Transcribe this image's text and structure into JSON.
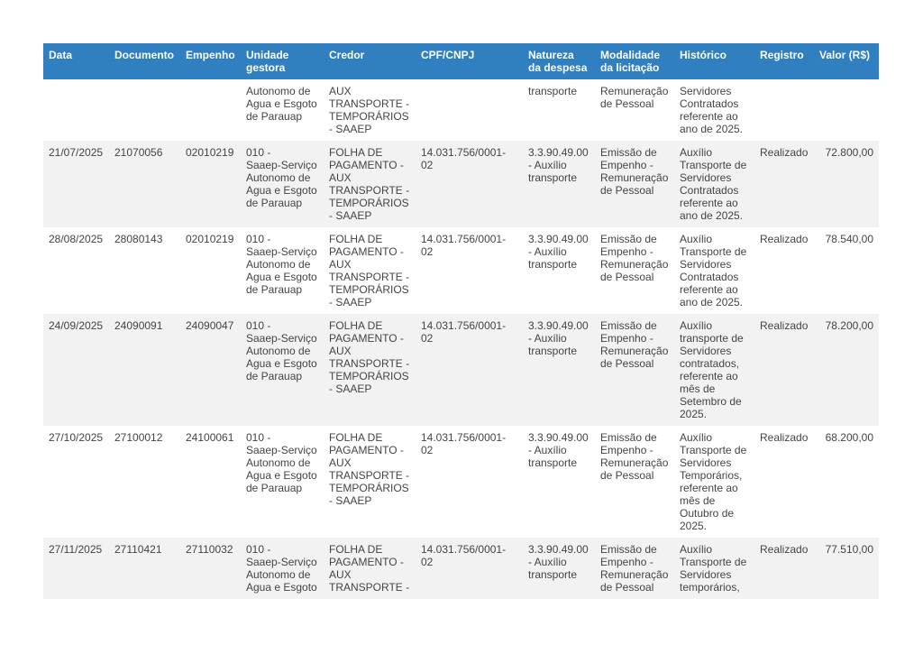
{
  "table": {
    "header": [
      [
        "Data"
      ],
      [
        "Documento"
      ],
      [
        "Empenho"
      ],
      [
        "Unidade",
        "gestora"
      ],
      [
        "Credor"
      ],
      [
        "CPF/CNPJ"
      ],
      [
        "Natureza",
        "da despesa"
      ],
      [
        "Modalidade",
        "da licitação"
      ],
      [
        "Histórico"
      ],
      [
        "Registro"
      ],
      [
        "Valor (R$)"
      ]
    ],
    "rows": [
      [
        [],
        [],
        [],
        [
          "Autonomo de",
          "Agua e Esgoto",
          "de Parauap"
        ],
        [
          "AUX",
          "TRANSPORTE -",
          "TEMPORÁRIOS",
          "- SAAEP"
        ],
        [],
        [
          "transporte"
        ],
        [
          "Remuneração",
          "de Pessoal"
        ],
        [
          "Servidores",
          "Contratados",
          "referente ao",
          "ano de 2025."
        ],
        [],
        []
      ],
      [
        [
          "21/07/2025"
        ],
        [
          "21070056"
        ],
        [
          "02010219"
        ],
        [
          "010 -",
          "Saaep-Serviço",
          "Autonomo de",
          "Agua e Esgoto",
          "de Parauap"
        ],
        [
          "FOLHA DE",
          "PAGAMENTO -",
          "AUX",
          "TRANSPORTE -",
          "TEMPORÁRIOS",
          "- SAAEP"
        ],
        [
          "14.031.756/0001-02"
        ],
        [
          "3.3.90.49.00",
          "- Auxílio",
          "transporte"
        ],
        [
          "Emissão de",
          "Empenho -",
          "Remuneração",
          "de Pessoal"
        ],
        [
          "Auxílio",
          "Transporte de",
          "Servidores",
          "Contratados",
          "referente ao",
          "ano de 2025."
        ],
        [
          "Realizado"
        ],
        [
          "72.800,00"
        ]
      ],
      [
        [
          "28/08/2025"
        ],
        [
          "28080143"
        ],
        [
          "02010219"
        ],
        [
          "010 -",
          "Saaep-Serviço",
          "Autonomo de",
          "Agua e Esgoto",
          "de Parauap"
        ],
        [
          "FOLHA DE",
          "PAGAMENTO -",
          "AUX",
          "TRANSPORTE -",
          "TEMPORÁRIOS",
          "- SAAEP"
        ],
        [
          "14.031.756/0001-02"
        ],
        [
          "3.3.90.49.00",
          "- Auxílio",
          "transporte"
        ],
        [
          "Emissão de",
          "Empenho -",
          "Remuneração",
          "de Pessoal"
        ],
        [
          "Auxílio",
          "Transporte de",
          "Servidores",
          "Contratados",
          "referente ao",
          "ano de 2025."
        ],
        [
          "Realizado"
        ],
        [
          "78.540,00"
        ]
      ],
      [
        [
          "24/09/2025"
        ],
        [
          "24090091"
        ],
        [
          "24090047"
        ],
        [
          "010 -",
          "Saaep-Serviço",
          "Autonomo de",
          "Agua e Esgoto",
          "de Parauap"
        ],
        [
          "FOLHA DE",
          "PAGAMENTO -",
          "AUX",
          "TRANSPORTE -",
          "TEMPORÁRIOS",
          "- SAAEP"
        ],
        [
          "14.031.756/0001-02"
        ],
        [
          "3.3.90.49.00",
          "- Auxílio",
          "transporte"
        ],
        [
          "Emissão de",
          "Empenho -",
          "Remuneração",
          "de Pessoal"
        ],
        [
          "Auxílio",
          "transporte de",
          "Servidores",
          "contratados,",
          "referente ao",
          "mês de",
          "Setembro de",
          "2025."
        ],
        [
          "Realizado"
        ],
        [
          "78.200,00"
        ]
      ],
      [
        [
          "27/10/2025"
        ],
        [
          "27100012"
        ],
        [
          "24100061"
        ],
        [
          "010 -",
          "Saaep-Serviço",
          "Autonomo de",
          "Agua e Esgoto",
          "de Parauap"
        ],
        [
          "FOLHA DE",
          "PAGAMENTO -",
          "AUX",
          "TRANSPORTE -",
          "TEMPORÁRIOS",
          "- SAAEP"
        ],
        [
          "14.031.756/0001-02"
        ],
        [
          "3.3.90.49.00",
          "- Auxílio",
          "transporte"
        ],
        [
          "Emissão de",
          "Empenho -",
          "Remuneração",
          "de Pessoal"
        ],
        [
          "Auxílio",
          "Transporte de",
          "Servidores",
          "Temporários,",
          "referente ao",
          "mês de",
          "Outubro de",
          "2025."
        ],
        [
          "Realizado"
        ],
        [
          "68.200,00"
        ]
      ],
      [
        [
          "27/11/2025"
        ],
        [
          "27110421"
        ],
        [
          "27110032"
        ],
        [
          "010 -",
          "Saaep-Serviço",
          "Autonomo de",
          "Agua e Esgoto"
        ],
        [
          "FOLHA DE",
          "PAGAMENTO -",
          "AUX",
          "TRANSPORTE -"
        ],
        [
          "14.031.756/0001-02"
        ],
        [
          "3.3.90.49.00",
          "- Auxílio",
          "transporte"
        ],
        [
          "Emissão de",
          "Empenho -",
          "Remuneração",
          "de Pessoal"
        ],
        [
          "Auxílio",
          "Transporte de",
          "Servidores",
          "temporários,"
        ],
        [
          "Realizado"
        ],
        [
          "77.510,00"
        ]
      ]
    ]
  }
}
